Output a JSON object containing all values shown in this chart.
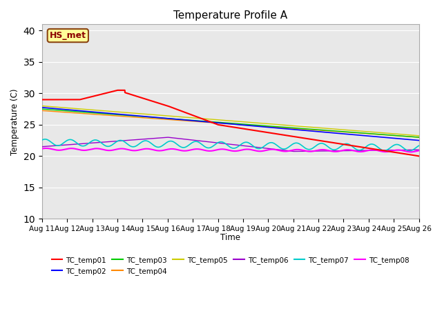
{
  "title": "Temperature Profile A",
  "xlabel": "Time",
  "ylabel": "Temperature (C)",
  "ylim": [
    10,
    41
  ],
  "yticks": [
    10,
    15,
    20,
    25,
    30,
    35,
    40
  ],
  "date_labels": [
    "Aug 11",
    "Aug 12",
    "Aug 13",
    "Aug 14",
    "Aug 15",
    "Aug 16",
    "Aug 17",
    "Aug 18",
    "Aug 19",
    "Aug 20",
    "Aug 21",
    "Aug 22",
    "Aug 23",
    "Aug 24",
    "Aug 25",
    "Aug 26"
  ],
  "annotation_text": "HS_met",
  "annotation_color": "#8B0000",
  "annotation_bg": "#FFFF99",
  "annotation_border": "#8B4513",
  "series_colors": {
    "TC_temp01": "#FF0000",
    "TC_temp02": "#0000FF",
    "TC_temp03": "#00CC00",
    "TC_temp04": "#FF8800",
    "TC_temp05": "#CCCC00",
    "TC_temp06": "#9900CC",
    "TC_temp07": "#00CCCC",
    "TC_temp08": "#FF00FF"
  },
  "legend_entries": [
    "TC_temp01",
    "TC_temp02",
    "TC_temp03",
    "TC_temp04",
    "TC_temp05",
    "TC_temp06",
    "TC_temp07",
    "TC_temp08"
  ],
  "plot_bg_color": "#E8E8E8"
}
